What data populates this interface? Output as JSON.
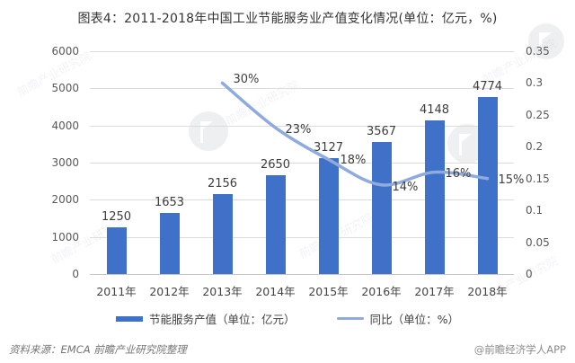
{
  "title": "图表4：2011-2018年中国工业节能服务业产值变化情况(单位：亿元，%)",
  "chart_data": {
    "type": "bar+line combo",
    "categories": [
      "2011年",
      "2012年",
      "2013年",
      "2014年",
      "2015年",
      "2016年",
      "2017年",
      "2018年"
    ],
    "series": [
      {
        "name": "节能服务产值（单位：亿元）",
        "type": "bar",
        "axis": "left",
        "color": "#3e71c7",
        "values": [
          1250,
          1653,
          2156,
          2650,
          3127,
          3567,
          4148,
          4774
        ],
        "labels": [
          "1250",
          "1653",
          "2156",
          "2650",
          "3127",
          "3567",
          "4148",
          "4774"
        ]
      },
      {
        "name": "同比（单位：%）",
        "type": "line",
        "axis": "right",
        "color": "#8faadc",
        "values": [
          null,
          null,
          0.3,
          0.23,
          0.18,
          0.14,
          0.16,
          0.15
        ],
        "labels": [
          "",
          "",
          "30%",
          "23%",
          "18%",
          "14%",
          "16%",
          "15%"
        ]
      }
    ],
    "left_axis": {
      "min": 0,
      "max": 6000,
      "ticks": [
        "0",
        "1000",
        "2000",
        "3000",
        "4000",
        "5000",
        "6000"
      ]
    },
    "right_axis": {
      "min": 0,
      "max": 0.35,
      "ticks": [
        "0",
        "0.05",
        "0.1",
        "0.15",
        "0.2",
        "0.25",
        "0.3",
        "0.35"
      ]
    },
    "grid": true,
    "legend_position": "bottom"
  },
  "legend": {
    "bar_label": "节能服务产值（单位：亿元）",
    "line_label": "同比（单位：%）"
  },
  "footer": {
    "source": "资料来源：EMCA 前瞻产业研究院整理",
    "credit": "@前瞻经济学人APP"
  },
  "watermark": {
    "text": "前瞻产业研究院",
    "logo_name": "qianzhan-flag-logo"
  },
  "colors": {
    "bar": "#3e71c7",
    "line": "#8faadc",
    "grid": "#dcdcdc",
    "axis_text": "#595959",
    "label_text": "#3d3d3d",
    "title_text": "#333333",
    "footer_text": "#757575",
    "logo_gray": "#9aa3ad"
  }
}
